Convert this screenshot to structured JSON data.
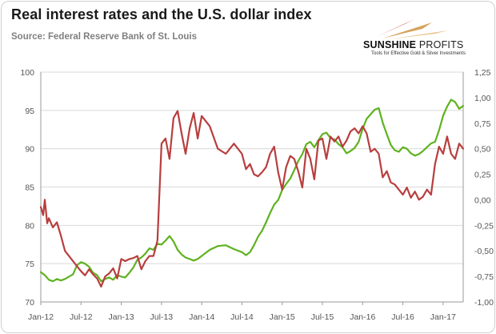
{
  "header": {
    "title": "Real interest rates and the U.S. dollar index",
    "source": "Source: Federal Reserve Bank of St. Louis"
  },
  "logo": {
    "brand_left": "SUNSHINE",
    "brand_right": "PROFITS",
    "tagline": "Tools for Effective Gold & Silver Investments"
  },
  "colors": {
    "dollar_index": "#5fb21f",
    "real_rates": "#b83e3e",
    "logo_accent": "#c8a36a",
    "logo_red": "#c0392b"
  },
  "chart_data": {
    "type": "line",
    "title": "Real interest rates and the U.S. dollar index",
    "x_tick_labels": [
      "Jan-12",
      "Jul-12",
      "Jan-13",
      "Jul-13",
      "Jan-14",
      "Jul-14",
      "Jan-15",
      "Jul-15",
      "Jan-16",
      "Jul-16",
      "Jan-17"
    ],
    "x_range": [
      2012.0,
      2017.25
    ],
    "left_axis": {
      "ylim": [
        70,
        100
      ],
      "ticks": [
        "70",
        "75",
        "80",
        "85",
        "90",
        "95",
        "100"
      ]
    },
    "right_axis": {
      "ylim": [
        -1.0,
        1.25
      ],
      "ticks": [
        "-1,00",
        "-0,75",
        "-0,50",
        "-0,25",
        "0,00",
        "0,25",
        "0,50",
        "0,75",
        "1,00",
        "1,25"
      ]
    },
    "grid": true,
    "series": [
      {
        "name": "U.S. dollar index",
        "axis": "left",
        "x": [
          2012.0,
          2012.05,
          2012.1,
          2012.15,
          2012.2,
          2012.25,
          2012.3,
          2012.35,
          2012.4,
          2012.45,
          2012.5,
          2012.55,
          2012.6,
          2012.65,
          2012.7,
          2012.75,
          2012.8,
          2012.85,
          2012.9,
          2012.95,
          2013.0,
          2013.05,
          2013.1,
          2013.15,
          2013.2,
          2013.25,
          2013.3,
          2013.35,
          2013.4,
          2013.45,
          2013.5,
          2013.55,
          2013.6,
          2013.65,
          2013.7,
          2013.75,
          2013.8,
          2013.85,
          2013.9,
          2013.95,
          2014.0,
          2014.1,
          2014.2,
          2014.3,
          2014.4,
          2014.5,
          2014.55,
          2014.6,
          2014.65,
          2014.7,
          2014.75,
          2014.8,
          2014.85,
          2014.9,
          2014.95,
          2015.0,
          2015.05,
          2015.1,
          2015.15,
          2015.2,
          2015.25,
          2015.3,
          2015.35,
          2015.4,
          2015.45,
          2015.5,
          2015.55,
          2015.6,
          2015.65,
          2015.7,
          2015.75,
          2015.8,
          2015.85,
          2015.9,
          2015.95,
          2016.0,
          2016.05,
          2016.1,
          2016.15,
          2016.2,
          2016.25,
          2016.3,
          2016.35,
          2016.4,
          2016.45,
          2016.5,
          2016.55,
          2016.6,
          2016.65,
          2016.7,
          2016.75,
          2016.8,
          2016.85,
          2016.9,
          2016.95,
          2017.0,
          2017.05,
          2017.1,
          2017.15,
          2017.2,
          2017.25
        ],
        "values": [
          73.9,
          73.5,
          72.9,
          72.7,
          73.0,
          72.8,
          73.0,
          73.3,
          73.6,
          74.8,
          75.2,
          75.0,
          74.6,
          73.8,
          73.5,
          72.7,
          73.0,
          73.2,
          72.9,
          73.5,
          73.3,
          73.2,
          73.8,
          74.5,
          75.5,
          75.8,
          76.3,
          77.0,
          76.8,
          77.6,
          77.5,
          78.0,
          78.6,
          77.9,
          76.8,
          76.2,
          75.8,
          75.6,
          75.4,
          75.6,
          76.0,
          76.8,
          77.3,
          77.4,
          76.9,
          76.5,
          76.1,
          76.5,
          77.4,
          78.5,
          79.3,
          80.4,
          81.6,
          82.7,
          83.3,
          84.6,
          85.4,
          86.1,
          87.2,
          88.4,
          89.3,
          90.6,
          90.9,
          90.2,
          91.1,
          91.9,
          92.1,
          91.4,
          91.2,
          90.6,
          90.2,
          89.4,
          89.7,
          90.1,
          90.9,
          92.6,
          93.9,
          94.5,
          95.1,
          95.3,
          93.4,
          91.9,
          90.5,
          89.8,
          89.6,
          90.2,
          90.0,
          89.4,
          89.1,
          89.3,
          89.7,
          90.2,
          90.7,
          90.9,
          92.4,
          94.3,
          95.5,
          96.4,
          96.1,
          95.2,
          95.6
        ]
      },
      {
        "name": "Real interest rates",
        "axis": "right",
        "x": [
          2012.0,
          2012.03,
          2012.05,
          2012.08,
          2012.1,
          2012.15,
          2012.2,
          2012.25,
          2012.3,
          2012.35,
          2012.4,
          2012.45,
          2012.5,
          2012.55,
          2012.6,
          2012.65,
          2012.7,
          2012.75,
          2012.8,
          2012.85,
          2012.9,
          2012.95,
          2013.0,
          2013.05,
          2013.1,
          2013.15,
          2013.2,
          2013.25,
          2013.3,
          2013.35,
          2013.4,
          2013.45,
          2013.5,
          2013.55,
          2013.6,
          2013.65,
          2013.7,
          2013.75,
          2013.8,
          2013.85,
          2013.9,
          2013.95,
          2014.0,
          2014.1,
          2014.2,
          2014.3,
          2014.4,
          2014.5,
          2014.55,
          2014.6,
          2014.65,
          2014.7,
          2014.75,
          2014.8,
          2014.85,
          2014.9,
          2014.95,
          2015.0,
          2015.05,
          2015.1,
          2015.15,
          2015.2,
          2015.25,
          2015.3,
          2015.35,
          2015.4,
          2015.45,
          2015.5,
          2015.55,
          2015.6,
          2015.65,
          2015.7,
          2015.75,
          2015.8,
          2015.85,
          2015.9,
          2015.95,
          2016.0,
          2016.05,
          2016.1,
          2016.15,
          2016.2,
          2016.25,
          2016.3,
          2016.35,
          2016.4,
          2016.45,
          2016.5,
          2016.55,
          2016.6,
          2016.65,
          2016.7,
          2016.75,
          2016.8,
          2016.85,
          2016.9,
          2016.95,
          2017.0,
          2017.05,
          2017.1,
          2017.15,
          2017.2,
          2017.25
        ],
        "values": [
          -0.07,
          -0.15,
          0.0,
          -0.23,
          -0.18,
          -0.27,
          -0.22,
          -0.35,
          -0.5,
          -0.55,
          -0.6,
          -0.65,
          -0.7,
          -0.74,
          -0.68,
          -0.73,
          -0.77,
          -0.85,
          -0.75,
          -0.72,
          -0.67,
          -0.77,
          -0.58,
          -0.6,
          -0.58,
          -0.57,
          -0.55,
          -0.68,
          -0.6,
          -0.55,
          -0.55,
          -0.4,
          0.55,
          0.6,
          0.4,
          0.8,
          0.87,
          0.65,
          0.45,
          0.7,
          0.85,
          0.6,
          0.82,
          0.72,
          0.5,
          0.45,
          0.55,
          0.45,
          0.3,
          0.35,
          0.25,
          0.23,
          0.27,
          0.32,
          0.45,
          0.52,
          0.27,
          0.1,
          0.32,
          0.43,
          0.4,
          0.28,
          0.12,
          0.5,
          0.4,
          0.2,
          0.58,
          0.6,
          0.4,
          0.62,
          0.57,
          0.62,
          0.52,
          0.58,
          0.67,
          0.7,
          0.65,
          0.72,
          0.65,
          0.47,
          0.5,
          0.45,
          0.22,
          0.28,
          0.17,
          0.15,
          0.1,
          0.05,
          0.12,
          0.02,
          0.08,
          0.0,
          0.03,
          0.1,
          0.05,
          0.35,
          0.52,
          0.45,
          0.62,
          0.45,
          0.4,
          0.55,
          0.5
        ]
      }
    ]
  }
}
